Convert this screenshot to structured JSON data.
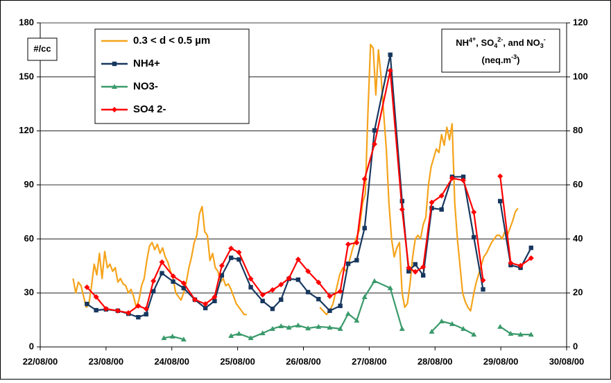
{
  "chart_data": {
    "type": "line",
    "y_label": "#/cc",
    "y2_label": {
      "line1": [
        "NH",
        "4",
        "+",
        ", SO",
        "4",
        "2-",
        ", and NO",
        "3",
        "-"
      ],
      "line2": [
        "(neq.m",
        "-3",
        ")"
      ]
    },
    "xlim": [
      0,
      8
    ],
    "xticks": [
      {
        "value": 0,
        "label": "22/08/00"
      },
      {
        "value": 1,
        "label": "23/08/00"
      },
      {
        "value": 2,
        "label": "24/08/00"
      },
      {
        "value": 3,
        "label": "25/08/00"
      },
      {
        "value": 4,
        "label": "26/08/00"
      },
      {
        "value": 5,
        "label": "27/08/00"
      },
      {
        "value": 6,
        "label": "28/08/00"
      },
      {
        "value": 7,
        "label": "29/08/00"
      },
      {
        "value": 8,
        "label": "30/08/00"
      }
    ],
    "ylim": [
      0,
      180
    ],
    "yticks": [
      0,
      30,
      60,
      90,
      120,
      150,
      180
    ],
    "y2lim": [
      0,
      120
    ],
    "y2ticks": [
      0,
      20,
      40,
      60,
      80,
      100,
      120
    ],
    "grid": true,
    "series": [
      {
        "name": "0.3 < d < 0.5 µm",
        "color": "#f5a31a",
        "marker": "none",
        "x": [
          0.5,
          0.54,
          0.58,
          0.62,
          0.66,
          0.7,
          0.74,
          0.78,
          0.82,
          0.86,
          0.9,
          0.94,
          0.98,
          1.02,
          1.06,
          1.1,
          1.14,
          1.18,
          1.22,
          1.26,
          1.3,
          1.34,
          1.38,
          1.42,
          1.46,
          1.5,
          1.54,
          1.58,
          1.62,
          1.66,
          1.7,
          1.74,
          1.78,
          1.82,
          1.86,
          1.9,
          1.94,
          1.98,
          2.02,
          2.06,
          2.1,
          2.14,
          2.18,
          2.22,
          2.26,
          2.3,
          2.34,
          2.38,
          2.42,
          2.46,
          2.5,
          2.54,
          2.58,
          2.62,
          2.66,
          2.7,
          2.74,
          2.78,
          2.82,
          2.86,
          2.9,
          2.94,
          2.98,
          3.02,
          3.06,
          3.1,
          3.14,
          null,
          4.25,
          4.3,
          4.35,
          4.4,
          4.45,
          4.5,
          4.55,
          4.6,
          4.65,
          4.7,
          4.75,
          4.8,
          4.85,
          4.9,
          4.94,
          4.98,
          5.02,
          5.06,
          5.1,
          5.14,
          5.18,
          5.22,
          5.26,
          5.3,
          5.34,
          5.38,
          5.42,
          5.46,
          5.5,
          5.54,
          5.58,
          5.62,
          5.66,
          5.7,
          5.74,
          5.78,
          5.82,
          5.86,
          5.9,
          5.94,
          5.98,
          6.02,
          6.06,
          6.1,
          6.14,
          6.18,
          6.22,
          6.26,
          6.3,
          6.34,
          6.38,
          6.42,
          6.46,
          6.5,
          6.54,
          6.58,
          6.62,
          6.66,
          6.7,
          6.74,
          6.78,
          6.82,
          6.86,
          6.9,
          6.94,
          6.98,
          7.02,
          7.06,
          7.1,
          7.14,
          7.18,
          7.22,
          7.26
        ],
        "values": [
          38,
          30,
          36,
          34,
          28,
          22,
          24,
          34,
          46,
          40,
          52,
          38,
          53,
          44,
          46,
          42,
          44,
          36,
          38,
          35,
          34,
          30,
          32,
          28,
          22,
          26,
          34,
          38,
          48,
          56,
          58,
          54,
          57,
          52,
          55,
          50,
          47,
          42,
          38,
          30,
          28,
          26,
          30,
          36,
          44,
          50,
          58,
          62,
          74,
          78,
          64,
          62,
          48,
          52,
          44,
          42,
          36,
          38,
          34,
          35,
          32,
          28,
          24,
          22,
          20,
          18,
          18,
          null,
          22,
          20,
          18,
          20,
          24,
          32,
          40,
          44,
          42,
          48,
          55,
          60,
          65,
          80,
          85,
          130,
          168,
          166,
          140,
          165,
          150,
          130,
          110,
          80,
          60,
          50,
          55,
          58,
          30,
          22,
          24,
          35,
          50,
          60,
          62,
          60,
          68,
          72,
          90,
          100,
          105,
          110,
          108,
          118,
          112,
          122,
          115,
          124,
          80,
          60,
          45,
          30,
          25,
          22,
          20,
          28,
          35,
          40,
          45,
          50,
          52,
          55,
          58,
          60,
          62,
          62,
          60,
          64,
          62,
          66,
          70,
          75,
          77
        ]
      },
      {
        "name": "NH4+",
        "color": "#17375e",
        "marker": "square",
        "axis": "y2",
        "x": [
          0.71,
          0.85,
          1.0,
          1.18,
          1.34,
          1.49,
          1.61,
          1.72,
          1.85,
          2.02,
          2.18,
          2.35,
          2.51,
          2.65,
          2.76,
          2.9,
          3.02,
          3.2,
          3.38,
          3.53,
          3.66,
          3.78,
          3.92,
          4.07,
          4.23,
          4.4,
          4.56,
          4.68,
          4.81,
          4.93,
          5.08,
          5.32,
          5.5,
          5.6,
          5.7,
          5.82,
          5.95,
          6.1,
          6.26,
          6.43,
          6.59,
          6.73,
          null,
          6.99,
          7.15,
          7.3,
          7.46
        ],
        "values": [
          15.9,
          13.6,
          13.9,
          13.4,
          12.3,
          11.0,
          12.1,
          20.6,
          27.3,
          24.2,
          21.8,
          17.5,
          14.4,
          17.0,
          26.5,
          33.0,
          32.4,
          22.1,
          17.0,
          14.1,
          17.5,
          25.2,
          24.9,
          20.3,
          17.7,
          13.4,
          15.2,
          30.8,
          32.1,
          44.0,
          80.2,
          108.2,
          54.0,
          28.0,
          30.6,
          26.5,
          51.4,
          50.9,
          63.0,
          63.0,
          40.6,
          21.3,
          null,
          54.0,
          30.3,
          29.3,
          36.7
        ]
      },
      {
        "name": "NO3-",
        "color": "#3a9a6b",
        "marker": "triangle",
        "axis": "y2",
        "x": [
          1.88,
          2.01,
          2.18,
          null,
          2.9,
          3.02,
          3.2,
          3.38,
          3.53,
          3.66,
          3.78,
          3.92,
          4.07,
          4.23,
          4.4,
          4.56,
          4.68,
          4.81,
          4.93,
          5.08,
          5.32,
          5.5,
          null,
          5.95,
          6.1,
          6.26,
          6.43,
          6.59,
          null,
          6.99,
          7.15,
          7.3,
          7.46
        ],
        "values": [
          3.3,
          3.9,
          2.8,
          null,
          4.1,
          4.9,
          3.3,
          5.1,
          6.7,
          7.7,
          7.2,
          8.0,
          6.9,
          7.5,
          7.2,
          6.7,
          12.3,
          9.8,
          18.5,
          24.4,
          21.8,
          6.7,
          null,
          5.7,
          9.5,
          8.5,
          6.7,
          4.6,
          null,
          7.5,
          4.9,
          4.6,
          4.6
        ]
      },
      {
        "name": "SO4 2-",
        "color": "#ff0000",
        "marker": "diamond",
        "axis": "y2",
        "x": [
          0.71,
          0.85,
          1.0,
          1.18,
          1.34,
          1.49,
          1.61,
          1.72,
          1.85,
          2.02,
          2.18,
          2.35,
          2.51,
          2.65,
          2.76,
          2.9,
          3.02,
          3.2,
          3.38,
          3.53,
          3.66,
          3.78,
          3.92,
          4.07,
          4.23,
          4.4,
          4.56,
          4.68,
          4.81,
          4.93,
          5.08,
          5.32,
          5.5,
          5.6,
          5.7,
          5.82,
          5.95,
          6.1,
          6.26,
          6.43,
          6.59,
          6.73,
          null,
          6.99,
          7.15,
          7.3,
          7.46
        ],
        "values": [
          22.1,
          18.5,
          14.1,
          13.4,
          12.6,
          15.2,
          14.1,
          24.4,
          31.4,
          26.2,
          23.6,
          17.5,
          15.9,
          18.5,
          30.1,
          36.5,
          35.0,
          25.2,
          19.3,
          21.1,
          23.1,
          25.4,
          32.4,
          28.0,
          23.9,
          18.8,
          20.6,
          38.0,
          38.6,
          62.2,
          75.1,
          102.3,
          50.9,
          29.3,
          27.8,
          29.6,
          53.5,
          56.0,
          62.5,
          61.7,
          49.9,
          24.7,
          null,
          63.2,
          31.1,
          30.1,
          32.9
        ]
      }
    ]
  }
}
